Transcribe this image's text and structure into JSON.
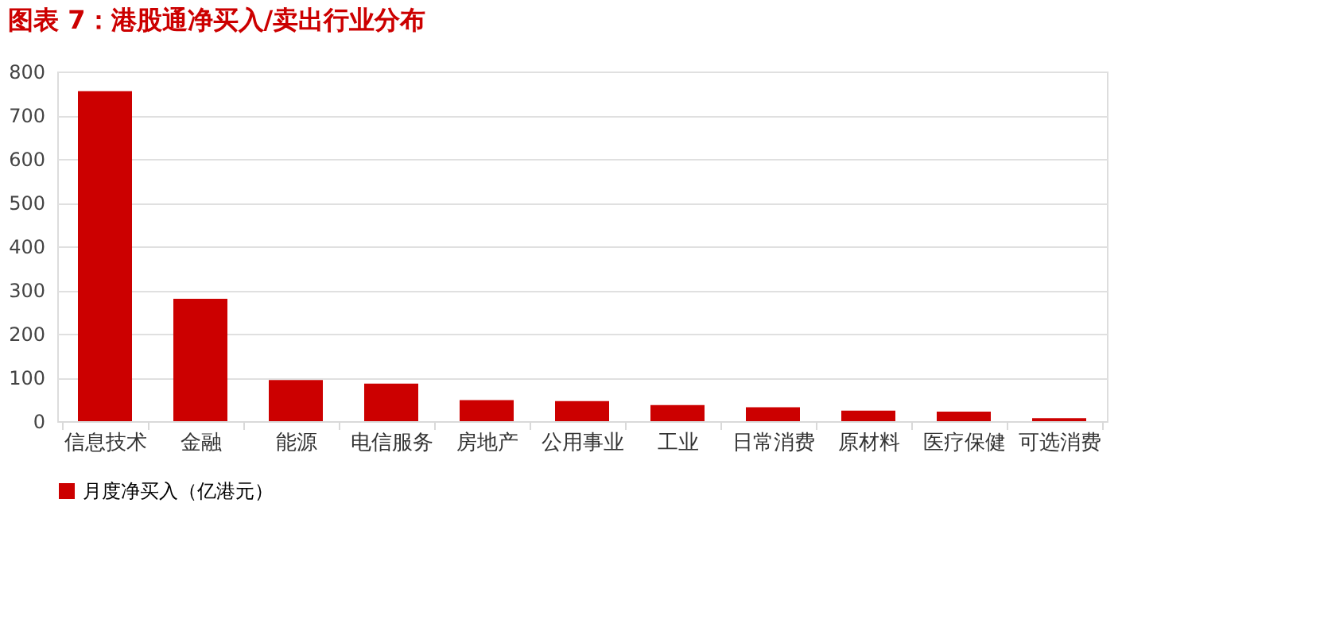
{
  "chart_data": {
    "type": "bar",
    "title": "图表 7：港股通净买入/卖出行业分布",
    "categories": [
      "信息技术",
      "金融",
      "能源",
      "电信服务",
      "房地产",
      "公用事业",
      "工业",
      "日常消费",
      "原材料",
      "医疗保健",
      "可选消费"
    ],
    "series": [
      {
        "name": "月度净买入（亿港元）",
        "color": "#cc0000",
        "values": [
          755,
          280,
          94,
          86,
          48,
          46,
          37,
          32,
          24,
          22,
          7
        ]
      }
    ],
    "ylim": [
      0,
      800
    ],
    "yticks": [
      0,
      100,
      200,
      300,
      400,
      500,
      600,
      700,
      800
    ],
    "grid": "y",
    "legend": "bottom"
  }
}
